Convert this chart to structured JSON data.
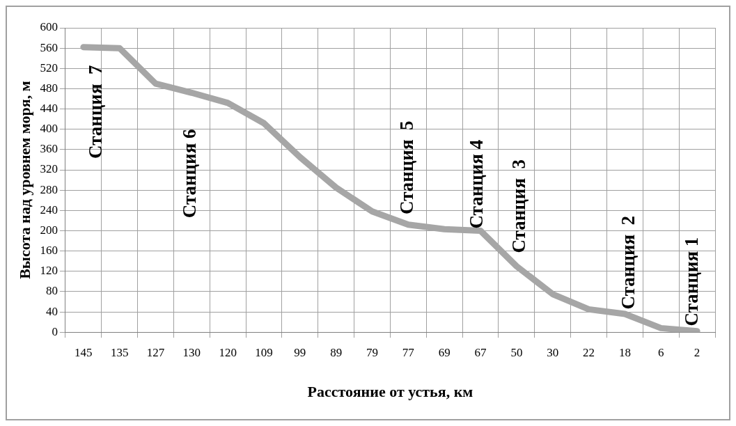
{
  "chart_data": {
    "type": "line",
    "xlabel": "Расстояние от устья, км",
    "ylabel": "Высота над уровнем моря, м",
    "categories": [
      "145",
      "135",
      "127",
      "130",
      "120",
      "109",
      "99",
      "89",
      "79",
      "77",
      "69",
      "67",
      "50",
      "30",
      "22",
      "18",
      "6",
      "2"
    ],
    "series": [
      {
        "color": "#a6a6a6",
        "values": [
          562,
          560,
          490,
          472,
          452,
          412,
          345,
          285,
          238,
          212,
          203,
          200,
          130,
          75,
          45,
          36,
          8,
          2
        ]
      }
    ],
    "ylim": [
      0,
      600
    ],
    "yticks": [
      0,
      40,
      80,
      120,
      160,
      200,
      240,
      280,
      320,
      360,
      400,
      440,
      480,
      520,
      560,
      600
    ],
    "grid": true,
    "legend": false,
    "marker": "none",
    "line_style": "solid",
    "annotations": [
      "Станция  7",
      "Станция 6",
      "Станция  5",
      "Станция 4",
      "Станция  3",
      "Станция  2",
      "Станция 1"
    ]
  }
}
